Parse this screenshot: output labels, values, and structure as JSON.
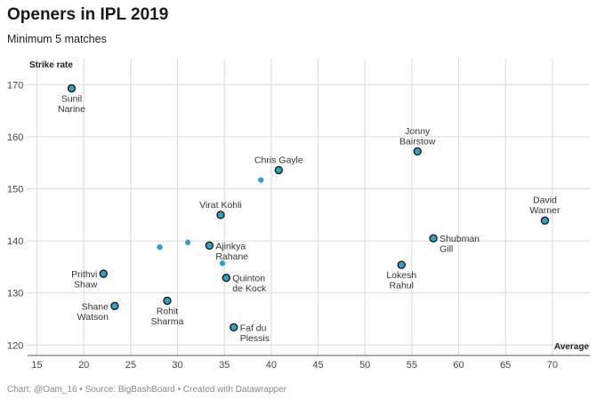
{
  "chart_data": {
    "type": "scatter",
    "title": "Openers in IPL 2019",
    "subtitle": "Minimum 5 matches",
    "xlabel": "Average",
    "ylabel": "Strike rate",
    "xlim": [
      14,
      74
    ],
    "ylim": [
      118,
      175
    ],
    "xticks": [
      15,
      20,
      25,
      30,
      35,
      40,
      45,
      50,
      55,
      60,
      65,
      70
    ],
    "yticks": [
      120,
      130,
      140,
      150,
      160,
      170
    ],
    "grid": true,
    "colors": {
      "point": "#2ea3c9",
      "outline": "#1a1a1a"
    },
    "points": [
      {
        "name": "Sunil Narine",
        "label_lines": [
          "Sunil",
          "Narine"
        ],
        "x": 18.7,
        "y": 169.3,
        "outlined": true,
        "label_pos": "below"
      },
      {
        "name": "Jonny Bairstow",
        "label_lines": [
          "Jonny",
          "Bairstow"
        ],
        "x": 55.6,
        "y": 157.2,
        "outlined": true,
        "label_pos": "above"
      },
      {
        "name": "Chris Gayle",
        "label_lines": [
          "Chris Gayle"
        ],
        "x": 40.8,
        "y": 153.6,
        "outlined": true,
        "label_pos": "above"
      },
      {
        "name": "David Warner",
        "label_lines": [
          "David",
          "Warner"
        ],
        "x": 69.2,
        "y": 143.9,
        "outlined": true,
        "label_pos": "above"
      },
      {
        "name": "Virat Kohli",
        "label_lines": [
          "Virat Kohli"
        ],
        "x": 34.6,
        "y": 145.0,
        "outlined": true,
        "label_pos": "above"
      },
      {
        "name": "Shubman Gill",
        "label_lines": [
          "Shubman",
          "Gill"
        ],
        "x": 57.3,
        "y": 140.5,
        "outlined": true,
        "label_pos": "right"
      },
      {
        "name": "Ajinkya Rahane",
        "label_lines": [
          "Ajinkya",
          "Rahane"
        ],
        "x": 33.4,
        "y": 139.1,
        "outlined": true,
        "label_pos": "right"
      },
      {
        "name": "Lokesh Rahul",
        "label_lines": [
          "Lokesh",
          "Rahul"
        ],
        "x": 53.9,
        "y": 135.4,
        "outlined": true,
        "label_pos": "below"
      },
      {
        "name": "Prithvi Shaw",
        "label_lines": [
          "Prithvi",
          "Shaw"
        ],
        "x": 22.1,
        "y": 133.7,
        "outlined": true,
        "label_pos": "left"
      },
      {
        "name": "Quinton de Kock",
        "label_lines": [
          "Quinton",
          "de Kock"
        ],
        "x": 35.2,
        "y": 132.9,
        "outlined": true,
        "label_pos": "right"
      },
      {
        "name": "Rohit Sharma",
        "label_lines": [
          "Rohit",
          "Sharma"
        ],
        "x": 28.9,
        "y": 128.5,
        "outlined": true,
        "label_pos": "below"
      },
      {
        "name": "Shane Watson",
        "label_lines": [
          "Shane",
          "Watson"
        ],
        "x": 23.3,
        "y": 127.5,
        "outlined": true,
        "label_pos": "left"
      },
      {
        "name": "Faf du Plessis",
        "label_lines": [
          "Faf du",
          "Plessis"
        ],
        "x": 36.0,
        "y": 123.4,
        "outlined": true,
        "label_pos": "right"
      },
      {
        "name": "",
        "label_lines": [],
        "x": 38.9,
        "y": 151.7,
        "outlined": false,
        "label_pos": "none"
      },
      {
        "name": "",
        "label_lines": [],
        "x": 28.1,
        "y": 138.8,
        "outlined": false,
        "label_pos": "none"
      },
      {
        "name": "",
        "label_lines": [],
        "x": 31.1,
        "y": 139.7,
        "outlined": false,
        "label_pos": "none"
      },
      {
        "name": "",
        "label_lines": [],
        "x": 34.8,
        "y": 135.7,
        "outlined": false,
        "label_pos": "none"
      }
    ]
  },
  "footer": "Chart: @Oam_16 • Source: BigBashBoard • Created with Datawrapper"
}
